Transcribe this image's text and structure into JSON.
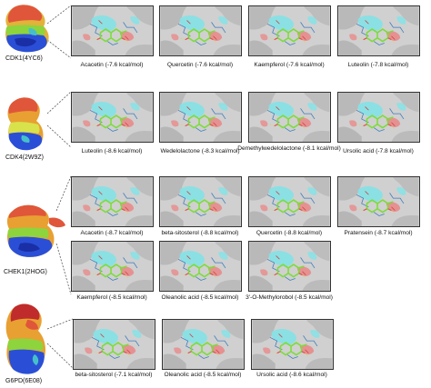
{
  "figure": {
    "colors": {
      "surface": "#c9c9c9",
      "cyan": "#7fe3e8",
      "red": "#e88a8a",
      "ligand": "#7ddc3a",
      "stick": "#3b7dbf"
    },
    "groups": [
      {
        "protein_label": "CDK1(4YC6)",
        "panels": [
          {
            "caption": "Acacetin (-7.6 kcal/mol)"
          },
          {
            "caption": "Quercetin (-7.6 kcal/mol)"
          },
          {
            "caption": "Kaempferol (-7.6 kcal/mol)"
          },
          {
            "caption": "Luteolin (-7.8 kcal/mol)"
          }
        ]
      },
      {
        "protein_label": "CDK4(2W9Z)",
        "panels": [
          {
            "caption": "Luteolin (-8.6 kcal/mol)"
          },
          {
            "caption": "Wedelolactone (-8.3 kcal/mol)"
          },
          {
            "caption": "Demethylwedelolactone (-8.1 kcal/mol)"
          },
          {
            "caption": "Ursolic acid (-7.8 kcal/mol)"
          }
        ]
      },
      {
        "protein_label": "CHEK1(2HOG)",
        "panels": [
          {
            "caption": "Acacetin (-8.7 kcal/mol)"
          },
          {
            "caption": "beta-sitosterol (-8.8 kcal/mol)"
          },
          {
            "caption": "Quercetin (-8.8 kcal/mol)"
          },
          {
            "caption": "Pratensein (-8.7 kcal/mol)"
          },
          {
            "caption": "Kaempferol (-8.5 kcal/mol)"
          },
          {
            "caption": "Oleanolic acid (-8.5 kcal/mol)"
          },
          {
            "caption": "3'-O-Methylorobol (-8.5 kcal/mol)"
          }
        ]
      },
      {
        "protein_label": "G6PD(6E08)",
        "panels": [
          {
            "caption": "beta-sitosterol (-7.1 kcal/mol)"
          },
          {
            "caption": "Oleanolic acid (-8.5 kcal/mol)"
          },
          {
            "caption": "Ursolic acid (-8.6 kcal/mol)"
          }
        ]
      }
    ]
  }
}
